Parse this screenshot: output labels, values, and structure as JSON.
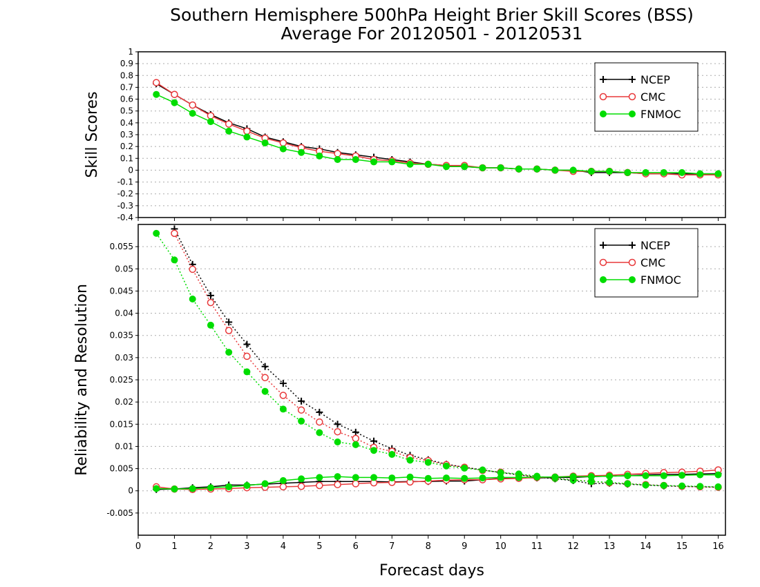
{
  "title_lines": [
    "Southern Hemisphere 500hPa Height Brier Skill Scores (BSS)",
    "Average For 20120501 - 20120531"
  ],
  "xlabel": "Forecast days",
  "colors": {
    "NCEP": "#000000",
    "CMC": "#e8383a",
    "FNMOC": "#00dd00",
    "grid": "#aaaaaa"
  },
  "chart_data": [
    {
      "type": "line",
      "ylabel": "Skill Scores",
      "xlim": [
        0,
        16.2
      ],
      "ylim": [
        -0.4,
        1
      ],
      "x_ticks": [
        0,
        1,
        2,
        3,
        4,
        5,
        6,
        7,
        8,
        9,
        10,
        11,
        12,
        13,
        14,
        15,
        16
      ],
      "y_ticks": [
        "-0.4",
        "-0.3",
        "-0.2",
        "-0.1",
        "0",
        "0.1",
        "0.2",
        "0.3",
        "0.4",
        "0.5",
        "0.6",
        "0.7",
        "0.8",
        "0.9",
        "1"
      ],
      "x": [
        0.5,
        1,
        1.5,
        2,
        2.5,
        3,
        3.5,
        4,
        4.5,
        5,
        5.5,
        6,
        6.5,
        7,
        7.5,
        8,
        8.5,
        9,
        9.5,
        10,
        10.5,
        11,
        11.5,
        12,
        12.5,
        13,
        13.5,
        14,
        14.5,
        15,
        15.5,
        16
      ],
      "legend": [
        "NCEP",
        "CMC",
        "FNMOC"
      ],
      "legend_position": "top-right",
      "series": [
        {
          "name": "NCEP",
          "style": "solid",
          "marker": "plus",
          "values": [
            0.73,
            0.64,
            0.55,
            0.47,
            0.4,
            0.35,
            0.28,
            0.24,
            0.2,
            0.18,
            0.15,
            0.13,
            0.11,
            0.09,
            0.07,
            0.05,
            0.04,
            0.03,
            0.02,
            0.02,
            0.01,
            0.01,
            0.0,
            0.0,
            -0.02,
            -0.02,
            -0.02,
            -0.03,
            -0.03,
            -0.03,
            -0.03,
            -0.03
          ]
        },
        {
          "name": "CMC",
          "style": "solid",
          "marker": "open-circle",
          "values": [
            0.74,
            0.64,
            0.55,
            0.46,
            0.39,
            0.33,
            0.27,
            0.23,
            0.19,
            0.16,
            0.14,
            0.12,
            0.09,
            0.08,
            0.06,
            0.05,
            0.04,
            0.04,
            0.02,
            0.02,
            0.01,
            0.01,
            0.0,
            -0.01,
            -0.01,
            -0.01,
            -0.02,
            -0.03,
            -0.03,
            -0.04,
            -0.04,
            -0.04
          ]
        },
        {
          "name": "FNMOC",
          "style": "solid",
          "marker": "filled-circle",
          "values": [
            0.64,
            0.57,
            0.48,
            0.41,
            0.33,
            0.28,
            0.23,
            0.18,
            0.15,
            0.12,
            0.09,
            0.09,
            0.07,
            0.07,
            0.05,
            0.05,
            0.03,
            0.03,
            0.02,
            0.02,
            0.01,
            0.01,
            0.0,
            0.0,
            -0.01,
            -0.01,
            -0.02,
            -0.02,
            -0.02,
            -0.02,
            -0.03,
            -0.03
          ]
        }
      ]
    },
    {
      "type": "line",
      "ylabel": "Reliability and Resolution",
      "xlim": [
        0,
        16.2
      ],
      "ylim": [
        -0.01,
        0.06
      ],
      "x_ticks": [
        0,
        1,
        2,
        3,
        4,
        5,
        6,
        7,
        8,
        9,
        10,
        11,
        12,
        13,
        14,
        15,
        16
      ],
      "y_ticks": [
        "-0.005",
        "0",
        "0.005",
        "0.01",
        "0.015",
        "0.02",
        "0.025",
        "0.03",
        "0.035",
        "0.04",
        "0.045",
        "0.05",
        "0.055"
      ],
      "x": [
        0.5,
        1,
        1.5,
        2,
        2.5,
        3,
        3.5,
        4,
        4.5,
        5,
        5.5,
        6,
        6.5,
        7,
        7.5,
        8,
        8.5,
        9,
        9.5,
        10,
        10.5,
        11,
        11.5,
        12,
        12.5,
        13,
        13.5,
        14,
        14.5,
        15,
        15.5,
        16
      ],
      "legend": [
        "NCEP",
        "CMC",
        "FNMOC"
      ],
      "legend_position": "top-right",
      "series": [
        {
          "name": "NCEP",
          "group": "Resolution",
          "style": "dotted",
          "marker": "plus",
          "values": [
            null,
            0.059,
            0.051,
            0.044,
            0.038,
            0.033,
            0.028,
            0.0242,
            0.0202,
            0.0177,
            0.015,
            0.0132,
            0.0112,
            0.0095,
            0.008,
            0.007,
            0.006,
            0.0053,
            0.0047,
            0.0041,
            0.0036,
            0.0031,
            0.0027,
            0.0023,
            0.0016,
            0.0017,
            0.0015,
            0.0013,
            0.0011,
            0.001,
            0.0009,
            0.0008
          ]
        },
        {
          "name": "CMC",
          "group": "Resolution",
          "style": "dotted",
          "marker": "open-circle",
          "values": [
            null,
            0.058,
            0.0499,
            0.0424,
            0.0361,
            0.0303,
            0.0255,
            0.0215,
            0.0182,
            0.0155,
            0.0133,
            0.0118,
            0.0098,
            0.0089,
            0.0075,
            0.0068,
            0.0059,
            0.0053,
            0.0046,
            0.0042,
            0.0037,
            0.0031,
            0.0028,
            0.0025,
            0.0021,
            0.0018,
            0.0016,
            0.0014,
            0.0012,
            0.001,
            0.0009,
            0.0008
          ]
        },
        {
          "name": "FNMOC",
          "group": "Resolution",
          "style": "dotted",
          "marker": "filled-circle",
          "values": [
            0.058,
            0.052,
            0.0432,
            0.0373,
            0.0312,
            0.0268,
            0.0224,
            0.0184,
            0.0157,
            0.0131,
            0.011,
            0.0104,
            0.0091,
            0.0082,
            0.0069,
            0.0064,
            0.0056,
            0.0051,
            0.0047,
            0.0041,
            0.0038,
            0.0033,
            0.0028,
            0.0024,
            0.0021,
            0.0019,
            0.0016,
            0.0013,
            0.0012,
            0.0011,
            0.001,
            0.0009
          ]
        },
        {
          "name": "NCEP",
          "group": "Reliability",
          "style": "solid",
          "marker": "plus",
          "values": [
            0.0003,
            0.0004,
            0.0007,
            0.0009,
            0.0013,
            0.0013,
            0.0015,
            0.0017,
            0.0019,
            0.0021,
            0.0021,
            0.0021,
            0.0021,
            0.002,
            0.0021,
            0.0021,
            0.0022,
            0.0022,
            0.0025,
            0.0028,
            0.003,
            0.0029,
            0.003,
            0.003,
            0.0032,
            0.0033,
            0.0034,
            0.0036,
            0.0037,
            0.0037,
            0.0038,
            0.0039
          ]
        },
        {
          "name": "CMC",
          "group": "Reliability",
          "style": "solid",
          "marker": "open-circle",
          "values": [
            0.0009,
            0.0004,
            0.0003,
            0.0004,
            0.0005,
            0.0007,
            0.0008,
            0.0009,
            0.001,
            0.0012,
            0.0014,
            0.0016,
            0.0018,
            0.0019,
            0.002,
            0.0022,
            0.0024,
            0.0025,
            0.0025,
            0.0027,
            0.0028,
            0.003,
            0.0031,
            0.0033,
            0.0034,
            0.0035,
            0.0037,
            0.0039,
            0.0041,
            0.0042,
            0.0044,
            0.0047
          ]
        },
        {
          "name": "FNMOC",
          "group": "Reliability",
          "style": "solid",
          "marker": "filled-circle",
          "values": [
            0.0005,
            0.0004,
            0.0005,
            0.0007,
            0.0009,
            0.0012,
            0.0016,
            0.0023,
            0.0027,
            0.003,
            0.0032,
            0.003,
            0.003,
            0.0029,
            0.0031,
            0.0028,
            0.0029,
            0.0028,
            0.0029,
            0.003,
            0.003,
            0.0031,
            0.0031,
            0.0032,
            0.0032,
            0.0033,
            0.0034,
            0.0034,
            0.0034,
            0.0035,
            0.0036,
            0.0036
          ]
        }
      ]
    }
  ]
}
